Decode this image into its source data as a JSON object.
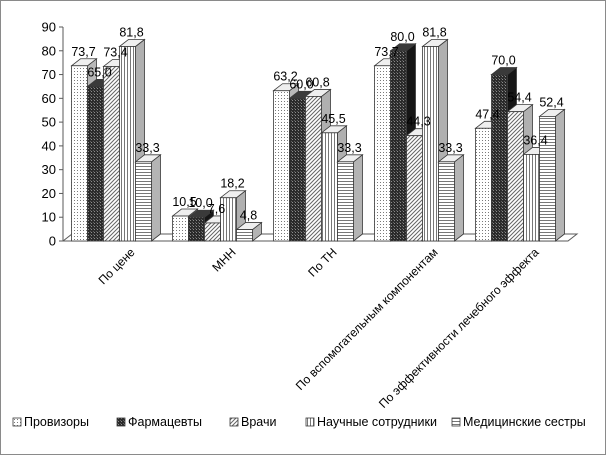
{
  "chart_data": {
    "type": "bar",
    "title": "",
    "xlabel": "",
    "ylabel": "",
    "ylim": [
      0,
      90
    ],
    "yticks": [
      "0",
      "10",
      "20",
      "30",
      "40",
      "50",
      "60",
      "70",
      "80",
      "90"
    ],
    "grid": false,
    "legend_position": "bottom",
    "categories": [
      "По цене",
      "МНН",
      "По ТН",
      "По вспомогательным компонентам",
      "По эффективности лечебного эффекта"
    ],
    "series": [
      {
        "name": "Провизоры",
        "pattern": "dots",
        "values": [
          73.7,
          10.5,
          63.2,
          73.7,
          47.4
        ],
        "labels": [
          "73,7",
          "10,5",
          "63,2",
          "73,7",
          "47,4"
        ]
      },
      {
        "name": "Фармацевты",
        "pattern": "dark",
        "values": [
          65.0,
          10.0,
          60.0,
          80.0,
          70.0
        ],
        "labels": [
          "65,0",
          "10,0",
          "60,0",
          "80,0",
          "70,0"
        ]
      },
      {
        "name": "Врачи",
        "pattern": "diagonal",
        "values": [
          73.4,
          7.6,
          60.8,
          44.3,
          54.4
        ],
        "labels": [
          "73,4",
          "7,6",
          "60,8",
          "44,3",
          "54,4"
        ]
      },
      {
        "name": "Научные сотрудники",
        "pattern": "vertical",
        "values": [
          81.8,
          18.2,
          45.5,
          81.8,
          36.4
        ],
        "labels": [
          "81,8",
          "18,2",
          "45,5",
          "81,8",
          "36,4"
        ]
      },
      {
        "name": "Медицинские сестры",
        "pattern": "horizontal",
        "values": [
          33.3,
          4.8,
          33.3,
          33.3,
          52.4
        ],
        "labels": [
          "33,3",
          "4,8",
          "33,3",
          "33,3",
          "52,4"
        ]
      }
    ]
  }
}
